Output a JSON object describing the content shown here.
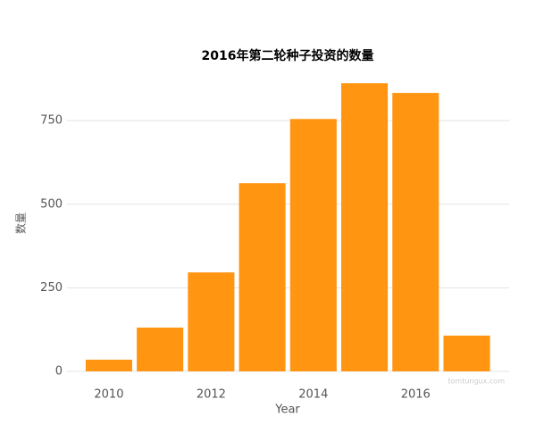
{
  "chart_data": {
    "type": "bar",
    "title": "2016年第二轮种子投资的数量",
    "x_label": "Year",
    "y_label": "数量",
    "watermark": "tomtungux.com",
    "x": [
      2010,
      2011,
      2012,
      2013,
      2014,
      2015,
      2016,
      2017
    ],
    "values": [
      35,
      131,
      296,
      563,
      755,
      862,
      833,
      107
    ],
    "color": "#ff9510",
    "xlim": [
      2009.18,
      2017.83
    ],
    "xticks": [
      2010,
      2012,
      2014,
      2016
    ],
    "ylim": [
      0,
      900
    ],
    "yticks": [
      0,
      250,
      500,
      750
    ],
    "grid": true
  }
}
